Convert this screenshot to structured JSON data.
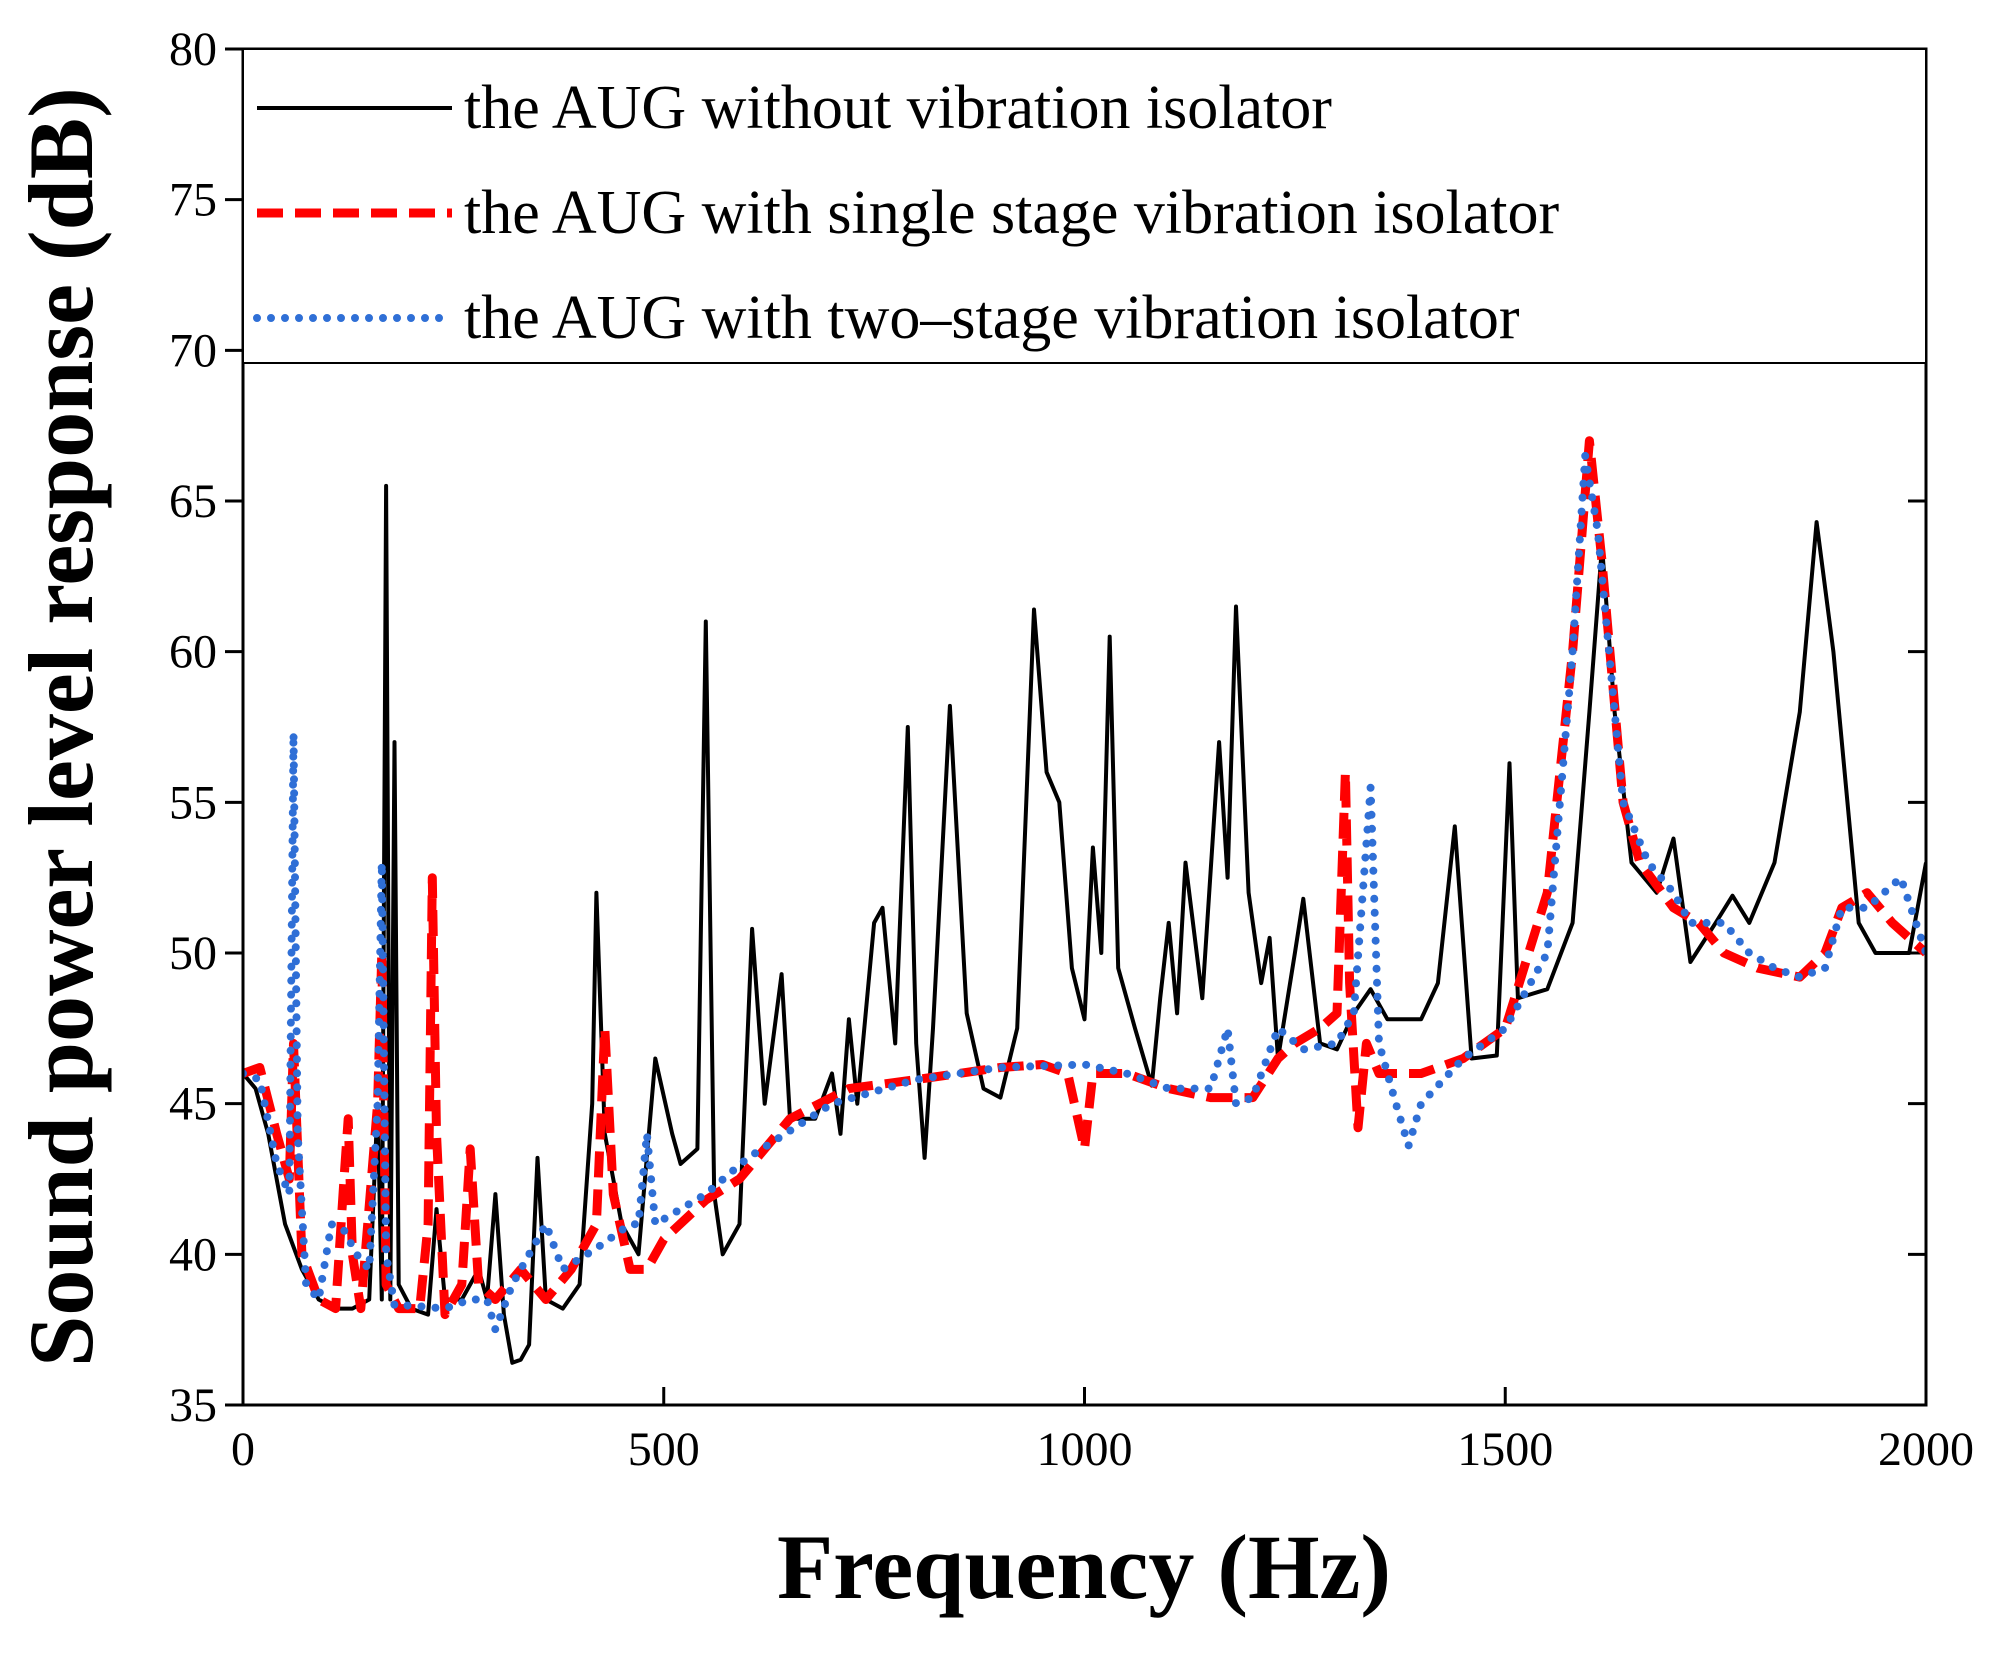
{
  "chart_data": {
    "type": "line",
    "xlabel": "Frequency (Hz)",
    "ylabel": "Sound power level response (dB)",
    "xlim": [
      0,
      2000
    ],
    "xticks": [
      0,
      500,
      1000,
      1500,
      2000
    ],
    "ylim": [
      35,
      80
    ],
    "yticks": [
      35,
      40,
      45,
      50,
      55,
      60,
      65,
      70,
      75,
      80
    ],
    "legend": "top",
    "series": [
      {
        "name": "the AUG without vibration isolator",
        "color": "#000000",
        "style": "solid",
        "x": [
          0,
          15,
          30,
          50,
          70,
          90,
          110,
          130,
          150,
          160,
          165,
          170,
          175,
          180,
          185,
          200,
          220,
          230,
          240,
          260,
          280,
          290,
          300,
          310,
          320,
          330,
          340,
          350,
          360,
          380,
          400,
          415,
          420,
          430,
          450,
          470,
          490,
          510,
          520,
          540,
          550,
          560,
          570,
          590,
          605,
          620,
          640,
          650,
          680,
          700,
          710,
          720,
          730,
          750,
          760,
          775,
          790,
          800,
          810,
          820,
          840,
          860,
          880,
          900,
          920,
          940,
          955,
          970,
          985,
          1000,
          1010,
          1020,
          1030,
          1040,
          1060,
          1080,
          1090,
          1100,
          1110,
          1120,
          1140,
          1160,
          1170,
          1180,
          1195,
          1210,
          1220,
          1230,
          1250,
          1260,
          1280,
          1300,
          1320,
          1340,
          1360,
          1400,
          1420,
          1440,
          1460,
          1490,
          1505,
          1515,
          1550,
          1580,
          1600,
          1615,
          1630,
          1650,
          1680,
          1700,
          1720,
          1750,
          1770,
          1790,
          1820,
          1850,
          1870,
          1890,
          1920,
          1940,
          1980,
          2000
        ],
        "values": [
          46,
          45.5,
          44,
          41,
          39.5,
          38.5,
          38.2,
          38.2,
          38.5,
          45,
          38.5,
          65.5,
          38.5,
          57,
          39,
          38.2,
          38,
          41.5,
          38.5,
          38.5,
          39.5,
          38.5,
          42,
          38,
          36.4,
          36.5,
          37,
          43.2,
          38.5,
          38.2,
          39,
          45,
          52,
          44,
          41,
          40,
          46.5,
          44,
          43,
          43.5,
          61,
          42,
          40,
          41,
          50.8,
          45,
          49.3,
          44.5,
          44.5,
          46,
          44,
          47.8,
          45,
          51,
          51.5,
          47,
          57.5,
          47,
          43.2,
          47.5,
          58.2,
          48,
          45.5,
          45.2,
          47.5,
          61.4,
          56,
          55,
          49.5,
          47.8,
          53.5,
          50,
          60.5,
          49.5,
          47.5,
          45.6,
          48.5,
          51,
          48,
          53,
          48.5,
          57,
          52.5,
          61.5,
          52,
          49,
          50.5,
          46.5,
          50,
          51.8,
          47,
          46.8,
          48,
          48.8,
          47.8,
          47.8,
          49,
          54.2,
          46.5,
          46.6,
          56.3,
          48.5,
          48.8,
          51,
          58,
          63.5,
          58,
          53,
          52,
          53.8,
          49.7,
          51,
          51.9,
          51,
          53,
          58,
          64.3,
          60,
          51,
          50,
          50,
          53
        ]
      },
      {
        "name": "the AUG with single stage vibration isolator",
        "color": "#ff0000",
        "style": "dashed",
        "x": [
          0,
          20,
          40,
          55,
          60,
          70,
          90,
          110,
          120,
          125,
          130,
          140,
          160,
          165,
          170,
          185,
          210,
          220,
          225,
          230,
          240,
          260,
          270,
          280,
          300,
          330,
          360,
          390,
          420,
          430,
          440,
          460,
          480,
          500,
          550,
          590,
          650,
          720,
          800,
          900,
          950,
          980,
          1000,
          1010,
          1050,
          1100,
          1150,
          1200,
          1230,
          1250,
          1280,
          1300,
          1310,
          1315,
          1325,
          1335,
          1350,
          1400,
          1450,
          1500,
          1550,
          1580,
          1600,
          1615,
          1640,
          1660,
          1700,
          1730,
          1760,
          1800,
          1850,
          1880,
          1900,
          1930,
          1960,
          2000
        ],
        "values": [
          46,
          46.2,
          44,
          42.5,
          47,
          40,
          38.5,
          38.2,
          42.5,
          44.5,
          40,
          38.2,
          45,
          50,
          39,
          38.2,
          38.2,
          41,
          52.5,
          44,
          38,
          39,
          43.5,
          39,
          38.5,
          39.5,
          38.5,
          39.5,
          41,
          47.5,
          42,
          39.5,
          39.5,
          40.5,
          41.8,
          42.5,
          44.5,
          45.5,
          45.8,
          46.2,
          46.3,
          46,
          43.5,
          46,
          46,
          45.5,
          45.2,
          45.2,
          46.5,
          47,
          47.5,
          48,
          56,
          49,
          44.2,
          47,
          46,
          46,
          46.5,
          47.5,
          52,
          60,
          67,
          63,
          55,
          53,
          51.5,
          51,
          50,
          49.5,
          49.2,
          50,
          51.5,
          52,
          51,
          50
        ]
      },
      {
        "name": "the AUG with two–stage vibration isolator",
        "color": "#2f6fd6",
        "style": "dotted",
        "x": [
          0,
          20,
          40,
          55,
          60,
          65,
          75,
          90,
          105,
          120,
          135,
          150,
          160,
          165,
          170,
          180,
          200,
          240,
          270,
          290,
          300,
          320,
          340,
          360,
          380,
          420,
          460,
          470,
          480,
          490,
          550,
          600,
          700,
          800,
          900,
          1000,
          1050,
          1100,
          1150,
          1170,
          1180,
          1200,
          1230,
          1260,
          1300,
          1320,
          1340,
          1350,
          1370,
          1385,
          1400,
          1450,
          1500,
          1550,
          1580,
          1595,
          1610,
          1640,
          1670,
          1700,
          1720,
          1760,
          1790,
          1820,
          1850,
          1880,
          1900,
          1930,
          1970,
          2000
        ],
        "values": [
          46,
          45.8,
          43,
          42,
          57.3,
          44,
          39,
          38.5,
          41,
          40.8,
          40,
          39.5,
          45,
          53,
          40,
          38.3,
          38.3,
          38.2,
          38.5,
          38.5,
          37.5,
          39,
          40,
          41,
          39.5,
          40.2,
          41,
          41,
          44,
          41,
          42,
          43.2,
          45,
          45.8,
          46.2,
          46.3,
          46,
          45.5,
          45.5,
          47.5,
          45,
          45.2,
          47.5,
          46.8,
          47,
          48,
          55.5,
          47,
          45,
          43.6,
          45,
          46.5,
          47.5,
          50,
          60,
          66.5,
          64,
          55,
          53,
          52,
          51,
          51,
          50,
          49.5,
          49.2,
          49.5,
          51.5,
          51.5,
          52.5,
          50
        ]
      }
    ]
  }
}
